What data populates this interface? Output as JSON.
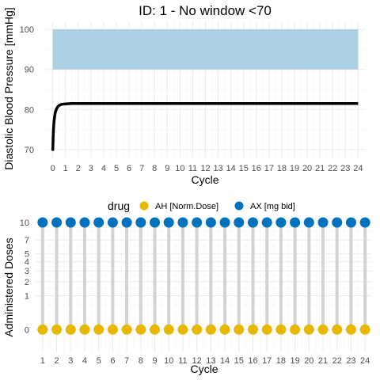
{
  "chart_data": [
    {
      "type": "line",
      "title": "ID: 1 -  No window <70",
      "xlabel": "Cycle",
      "ylabel": "Diastolic Blood Pressure [mmHg]",
      "xlim": [
        -0.6,
        24.6
      ],
      "ylim": [
        68,
        102
      ],
      "x_ticks": [
        0,
        1,
        2,
        3,
        4,
        5,
        6,
        7,
        8,
        9,
        10,
        11,
        12,
        13,
        14,
        15,
        16,
        17,
        18,
        19,
        20,
        21,
        22,
        23,
        24
      ],
      "y_ticks": [
        70,
        80,
        90,
        100
      ],
      "target_band": {
        "ymin": 90,
        "ymax": 100,
        "color": "#a6cee3"
      },
      "series": [
        {
          "color": "#000000",
          "points": [
            [
              0,
              69.7
            ],
            [
              0.03,
              73.0
            ],
            [
              0.06,
              75.3
            ],
            [
              0.1,
              77.0
            ],
            [
              0.15,
              78.3
            ],
            [
              0.2,
              79.3
            ],
            [
              0.3,
              80.2
            ],
            [
              0.4,
              80.7
            ],
            [
              0.5,
              81.0
            ],
            [
              0.7,
              81.3
            ],
            [
              1.0,
              81.4
            ],
            [
              1.5,
              81.5
            ],
            [
              2,
              81.5
            ],
            [
              4,
              81.5
            ],
            [
              8,
              81.5
            ],
            [
              12,
              81.5
            ],
            [
              16,
              81.5
            ],
            [
              20,
              81.5
            ],
            [
              24,
              81.5
            ]
          ]
        }
      ],
      "grid": true
    },
    {
      "type": "lollipop",
      "xlabel": "Cycle",
      "ylabel": "Administered Doses",
      "xlim": [
        0.5,
        24.5
      ],
      "ylim": [
        -0.45,
        10.45
      ],
      "x_ticks": [
        1,
        2,
        3,
        4,
        5,
        6,
        7,
        8,
        9,
        10,
        11,
        12,
        13,
        14,
        15,
        16,
        17,
        18,
        19,
        20,
        21,
        22,
        23,
        24
      ],
      "y_ticks": [
        0,
        1,
        2,
        3,
        4,
        5,
        7,
        10
      ],
      "y_scale": "sqrt",
      "legend": {
        "title": "drug",
        "placement": "top",
        "entries": [
          {
            "label": "AH [Norm.Dose]",
            "color": "#e6b800"
          },
          {
            "label": "AX [mg bid]",
            "color": "#0072bd"
          }
        ]
      },
      "stem_color": "#d3d3d3",
      "series": [
        {
          "name": "AH [Norm.Dose]",
          "color": "#e6b800",
          "x": [
            1,
            2,
            3,
            4,
            5,
            6,
            7,
            8,
            9,
            10,
            11,
            12,
            13,
            14,
            15,
            16,
            17,
            18,
            19,
            20,
            21,
            22,
            23,
            24
          ],
          "values": [
            0,
            0,
            0,
            0,
            0,
            0,
            0,
            0,
            0,
            0,
            0,
            0,
            0,
            0,
            0,
            0,
            0,
            0,
            0,
            0,
            0,
            0,
            0,
            0
          ]
        },
        {
          "name": "AX [mg bid]",
          "color": "#0072bd",
          "x": [
            1,
            2,
            3,
            4,
            5,
            6,
            7,
            8,
            9,
            10,
            11,
            12,
            13,
            14,
            15,
            16,
            17,
            18,
            19,
            20,
            21,
            22,
            23,
            24
          ],
          "values": [
            10,
            10,
            10,
            10,
            10,
            10,
            10,
            10,
            10,
            10,
            10,
            10,
            10,
            10,
            10,
            10,
            10,
            10,
            10,
            10,
            10,
            10,
            10,
            10
          ]
        }
      ],
      "grid": true
    }
  ]
}
